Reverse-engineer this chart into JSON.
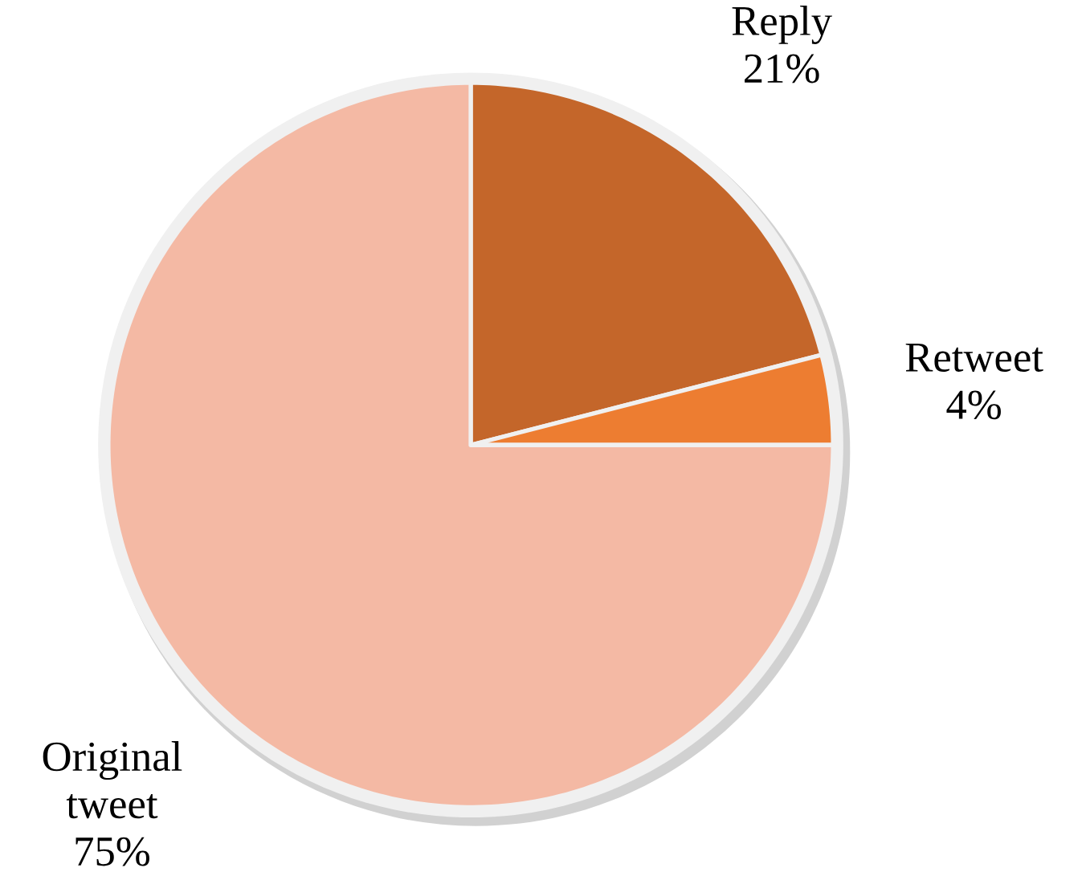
{
  "chart_data": {
    "type": "pie",
    "categories": [
      "Reply",
      "Retweet",
      "Original tweet"
    ],
    "values": [
      21,
      4,
      75
    ],
    "colors": [
      "#c4662a",
      "#ed7d31",
      "#f4b9a4"
    ],
    "value_labels": [
      "21%",
      "4%",
      "75%"
    ]
  }
}
